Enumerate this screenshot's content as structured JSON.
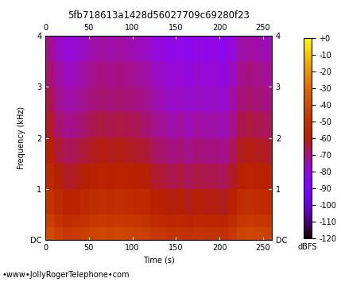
{
  "chart_data": {
    "type": "heatmap",
    "title": "5fb718613a1428d56027709c69280f23",
    "x_label": "Time (s)",
    "y_label": "Frequency (kHz)",
    "footer": "•www•JollyRogerTelephone•com",
    "xlim": [
      0,
      260
    ],
    "xticks": [
      0,
      50,
      100,
      150,
      200,
      250
    ],
    "ylim": [
      0,
      4
    ],
    "yticks": [
      {
        "value": 0,
        "label": "DC"
      },
      1,
      2,
      3,
      4
    ],
    "time_edges": [
      0,
      10,
      20,
      30,
      40,
      50,
      60,
      70,
      80,
      90,
      100,
      110,
      120,
      130,
      140,
      150,
      160,
      170,
      180,
      190,
      200,
      210,
      220,
      230,
      240,
      250,
      260
    ],
    "freq_edges": [
      0,
      0.25,
      0.5,
      1,
      1.5,
      2,
      2.5,
      3,
      3.5,
      4
    ],
    "cells": [
      [
        -40,
        -45,
        -48,
        -47,
        -45,
        -43,
        -42,
        -43,
        -42,
        -43,
        -44,
        -45,
        -48,
        -49,
        -51,
        -50,
        -52,
        -50,
        -51,
        -51,
        -52,
        -48,
        -43,
        -42,
        -43,
        -44
      ],
      [
        -45,
        -50,
        -53,
        -52,
        -50,
        -48,
        -47,
        -48,
        -47,
        -48,
        -49,
        -50,
        -53,
        -54,
        -56,
        -55,
        -57,
        -55,
        -56,
        -56,
        -57,
        -53,
        -48,
        -47,
        -48,
        -49
      ],
      [
        -50,
        -55,
        -58,
        -57,
        -55,
        -53,
        -52,
        -53,
        -52,
        -53,
        -54,
        -55,
        -58,
        -59,
        -61,
        -60,
        -62,
        -60,
        -61,
        -61,
        -62,
        -58,
        -53,
        -52,
        -53,
        -54
      ],
      [
        -55,
        -60,
        -63,
        -62,
        -60,
        -58,
        -57,
        -58,
        -57,
        -58,
        -59,
        -60,
        -63,
        -64,
        -66,
        -65,
        -67,
        -65,
        -66,
        -66,
        -67,
        -63,
        -58,
        -57,
        -58,
        -59
      ],
      [
        -59,
        -64,
        -67,
        -66,
        -64,
        -62,
        -61,
        -62,
        -61,
        -62,
        -63,
        -64,
        -67,
        -68,
        -70,
        -69,
        -71,
        -69,
        -70,
        -70,
        -71,
        -67,
        -62,
        -61,
        -62,
        -63
      ],
      [
        -63,
        -68,
        -71,
        -70,
        -68,
        -66,
        -65,
        -66,
        -65,
        -66,
        -67,
        -68,
        -71,
        -72,
        -74,
        -73,
        -75,
        -73,
        -74,
        -74,
        -75,
        -71,
        -66,
        -65,
        -66,
        -67
      ],
      [
        -66,
        -71,
        -74,
        -73,
        -71,
        -69,
        -68,
        -69,
        -68,
        -69,
        -70,
        -71,
        -74,
        -75,
        -77,
        -76,
        -78,
        -76,
        -77,
        -77,
        -78,
        -74,
        -69,
        -68,
        -69,
        -70
      ],
      [
        -68,
        -73,
        -76,
        -75,
        -73,
        -71,
        -70,
        -71,
        -70,
        -71,
        -72,
        -73,
        -76,
        -77,
        -79,
        -78,
        -80,
        -78,
        -79,
        -79,
        -80,
        -76,
        -71,
        -70,
        -71,
        -72
      ],
      [
        -71,
        -76,
        -79,
        -78,
        -76,
        -74,
        -73,
        -74,
        -73,
        -74,
        -75,
        -76,
        -79,
        -80,
        -82,
        -81,
        -83,
        -81,
        -82,
        -82,
        -83,
        -79,
        -74,
        -73,
        -74,
        -75
      ]
    ],
    "colorbar_label": "dBFS",
    "colorbar_range": [
      -120,
      0
    ],
    "colorbar_ticks": [
      {
        "value": 0,
        "label": "+0"
      },
      -10,
      -20,
      -30,
      -40,
      -50,
      -60,
      -70,
      -80,
      -90,
      -100,
      -110,
      -120
    ]
  }
}
